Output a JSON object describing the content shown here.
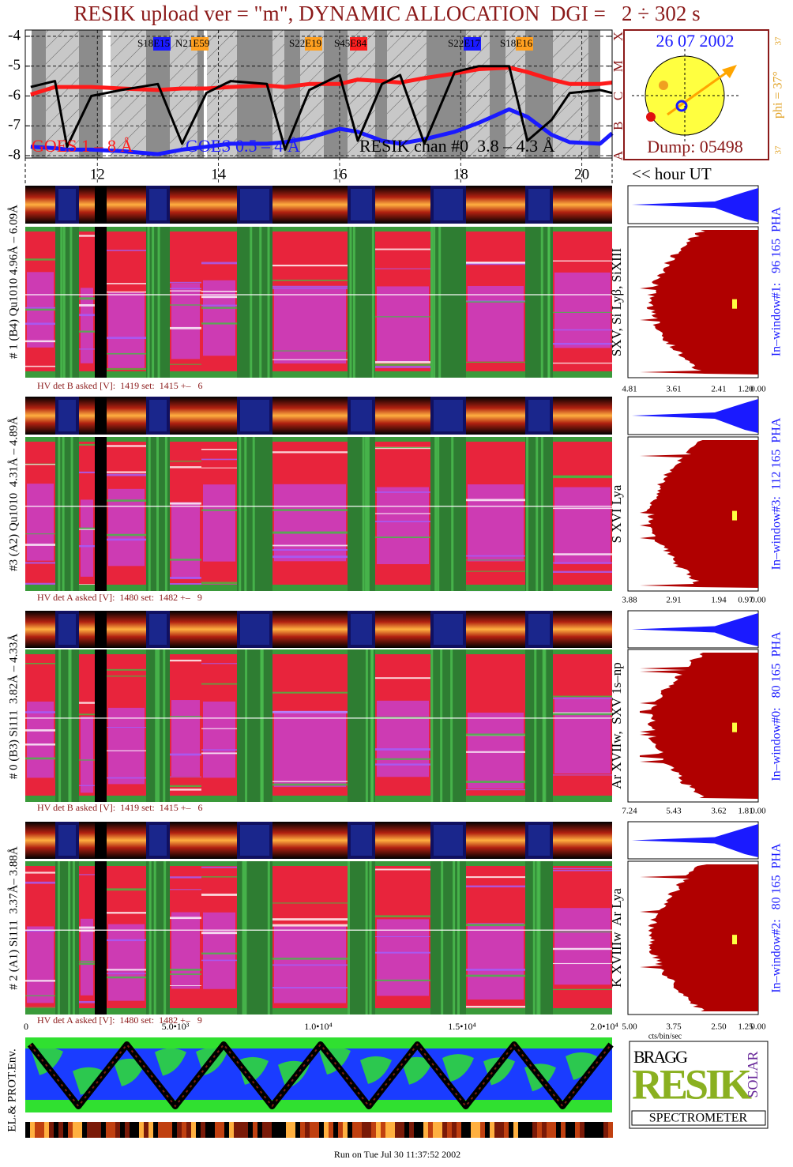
{
  "chart_data": {
    "type": "line",
    "title": "RESIK upload ver = \"m\", DYNAMIC ALLOCATION  DGI =   2 ÷ 302 s",
    "x_label": "<< hour UT",
    "x": [
      10.9,
      11.3,
      11.5,
      11.9,
      12.4,
      13,
      13.4,
      13.8,
      14.2,
      14.8,
      15.1,
      15.5,
      16,
      16.3,
      16.7,
      17,
      17.4,
      17.9,
      18.3,
      18.8,
      19.1,
      19.5,
      19.8,
      20.3,
      20.5
    ],
    "xlim": [
      10.81,
      20.5
    ],
    "xticks": [
      12,
      14,
      16,
      18,
      20
    ],
    "ylim": [
      -8.08,
      -3.79
    ],
    "yticks": [
      -4,
      -5,
      -6,
      -7,
      -8
    ],
    "y2lim": [
      -8.08,
      -3.79
    ],
    "y2ticks": [
      {
        "value": -8,
        "label": "A"
      },
      {
        "value": -7,
        "label": "B"
      },
      {
        "value": -6,
        "label": "C"
      },
      {
        "value": -5,
        "label": "M"
      },
      {
        "value": -4,
        "label": "X"
      }
    ],
    "grid": true,
    "series": [
      {
        "name": "GOES 1 – 8 Å",
        "color": "#ff1a1a",
        "values": [
          -5.95,
          -5.7,
          -5.7,
          -5.7,
          -5.75,
          -5.8,
          -5.75,
          -5.75,
          -5.7,
          -5.65,
          -5.7,
          -5.6,
          -5.6,
          -5.45,
          -5.5,
          -5.55,
          -5.4,
          -5.25,
          -5.1,
          -5.05,
          -5.2,
          -5.45,
          -5.6,
          -5.6,
          -5.55
        ]
      },
      {
        "name": "GOES 0.5 – 4 Å",
        "color": "#1a1aff",
        "values": [
          -7.7,
          -7.75,
          -7.8,
          -7.8,
          -7.85,
          -7.95,
          -7.8,
          -7.7,
          -7.6,
          -7.6,
          -7.55,
          -7.4,
          -7.1,
          -7.2,
          -7.5,
          -7.6,
          -7.45,
          -7.2,
          -6.9,
          -6.45,
          -6.7,
          -7.3,
          -7.55,
          -7.6,
          -7.25
        ]
      },
      {
        "name": "RESIK chan #0  3.8 – 4.3 Å",
        "color": "#000000",
        "values": [
          -5.7,
          -5.5,
          -7.7,
          -6.0,
          -5.8,
          -5.6,
          -7.6,
          -5.9,
          -5.5,
          -5.6,
          -7.8,
          -5.8,
          -5.3,
          -7.5,
          -5.6,
          -5.3,
          -7.6,
          -5.2,
          -5.0,
          -5.0,
          -7.5,
          -6.8,
          -5.9,
          -5.8,
          -5.9
        ]
      }
    ],
    "annotations": [
      "S18E15",
      "N21E59",
      "S22E19",
      "S45E84",
      "S22E17",
      "S18E16"
    ]
  },
  "sun": {
    "date": "26 07 2002",
    "phi": "phi = 37°",
    "top_value": "37",
    "bottom_value": "37",
    "dump": "Dump: 05498"
  },
  "panels": [
    {
      "detector": "# 1 (B4) Qu1010 4.96Å – 6.09Å",
      "lines": "SXV, Si Lyβ, SiXIII",
      "hv": "HV det B asked [V]:  1419 set:  1415 +–   6",
      "window": "In–window#1:   96 165  PHA",
      "pha_ticks": [
        "4.81",
        "3.61",
        "2.41",
        "1.20",
        "0.00"
      ]
    },
    {
      "detector": "#3 (A2) Qu1010  4.31Å – 4.89Å",
      "lines": "S XVI Lya",
      "hv": "HV det A asked [V]:  1480 set:  1482 +–   9",
      "window": "In–window#3:  112 165  PHA",
      "pha_ticks": [
        "3.88",
        "2.91",
        "1.94",
        "0.97",
        "0.00"
      ]
    },
    {
      "detector": "# 0 (B3) Si111  3.82Å – 4.33Å",
      "lines": "Ar XVIIw,  SXV 1s–np",
      "hv": "HV det B asked [V]:  1419 set:  1415 +–   6",
      "window": "In–window#0:   80 165  PHA",
      "pha_ticks": [
        "7.24",
        "5.43",
        "3.62",
        "1.81",
        "0.00"
      ]
    },
    {
      "detector": "# 2 (A1) Si111  3.37Å– 3.88Å",
      "lines": "K XVIIIw  Ar Lya",
      "hv": "HV det A asked [V]:  1480 set:  1482 +–   9",
      "window": "In–window#2:   80 165  PHA",
      "pha_ticks": [
        "5.00",
        "3.75",
        "2.50",
        "1.25",
        "0.00"
      ]
    }
  ],
  "pha_unit": "cts/bin/sec",
  "environment": {
    "label": "EL.& PROT.Env.",
    "ticks": [
      "0",
      "5.0•10³",
      "1.0•10⁴",
      "1.5•10⁴",
      "2.0•10⁴"
    ]
  },
  "logo": {
    "bragg": "BRAGG",
    "resik": "RESIK",
    "solar": "SOLAR",
    "spectrometer": "SPECTROMETER"
  },
  "footer": "Run on Tue Jul 30 11:37:52 2002"
}
